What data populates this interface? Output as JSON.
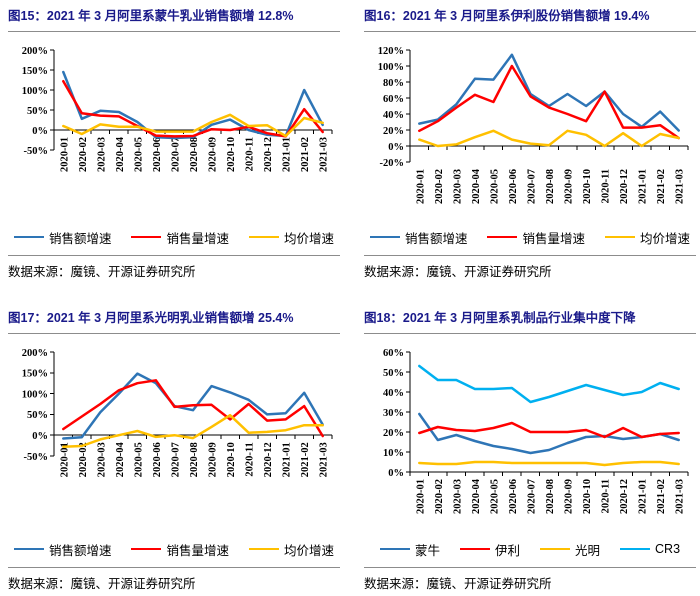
{
  "colors": {
    "title_navy": "#1A1A8A",
    "rule_gray": "#8C8C8C",
    "series_blue": "#2E75B6",
    "series_red": "#FF0000",
    "series_yellow": "#FFC000",
    "series_cyan": "#00B0F0"
  },
  "months": [
    "2020-01",
    "2020-02",
    "2020-03",
    "2020-04",
    "2020-05",
    "2020-06",
    "2020-07",
    "2020-08",
    "2020-09",
    "2020-10",
    "2020-11",
    "2020-12",
    "2021-01",
    "2021-02",
    "2021-03"
  ],
  "panels": [
    {
      "title": "图15：2021 年 3 月阿里系蒙牛乳业销售额增 12.8%",
      "source": "数据来源：魔镜、开源证券研究所",
      "legend": [
        {
          "label": "销售额增速",
          "color": "#2E75B6"
        },
        {
          "label": "销售量增速",
          "color": "#FF0000"
        },
        {
          "label": "均价增速",
          "color": "#FFC000"
        }
      ],
      "chart_data": {
        "type": "line",
        "title": "2021年3月阿里系蒙牛乳业销售额增12.8%",
        "categories": [
          "2020-01",
          "2020-02",
          "2020-03",
          "2020-04",
          "2020-05",
          "2020-06",
          "2020-07",
          "2020-08",
          "2020-09",
          "2020-10",
          "2020-11",
          "2020-12",
          "2021-01",
          "2021-02",
          "2021-03"
        ],
        "series": [
          {
            "name": "销售额增速",
            "color": "#2E75B6",
            "values": [
              145,
              28,
              48,
              45,
              20,
              -18,
              -20,
              -18,
              13,
              26,
              0,
              -12,
              -15,
              100,
              12.8
            ]
          },
          {
            "name": "销售量增速",
            "color": "#FF0000",
            "values": [
              122,
              42,
              36,
              34,
              10,
              -14,
              -16,
              -15,
              2,
              0,
              8,
              -8,
              -16,
              52,
              -5
            ]
          },
          {
            "name": "均价增速",
            "color": "#FFC000",
            "values": [
              10,
              -10,
              14,
              8,
              8,
              -4,
              -4,
              -4,
              20,
              38,
              10,
              12,
              -15,
              30,
              18
            ]
          }
        ],
        "ylim": [
          -50,
          200
        ],
        "ystep": 50,
        "y_unit": "%",
        "grid": false,
        "legend_position": "bottom"
      }
    },
    {
      "title": "图16：2021 年 3 月阿里系伊利股份销售额增 19.4%",
      "source": "数据来源：魔镜、开源证券研究所",
      "legend": [
        {
          "label": "销售额增速",
          "color": "#2E75B6"
        },
        {
          "label": "销售量增速",
          "color": "#FF0000"
        },
        {
          "label": "均价增速",
          "color": "#FFC000"
        }
      ],
      "chart_data": {
        "type": "line",
        "title": "2021年3月阿里系伊利股份销售额增19.4%",
        "categories": [
          "2020-01",
          "2020-02",
          "2020-03",
          "2020-04",
          "2020-05",
          "2020-06",
          "2020-07",
          "2020-08",
          "2020-09",
          "2020-10",
          "2020-11",
          "2020-12",
          "2021-01",
          "2021-02",
          "2021-03"
        ],
        "series": [
          {
            "name": "销售额增速",
            "color": "#2E75B6",
            "values": [
              28,
              33,
              52,
              84,
              83,
              114,
              65,
              50,
              65,
              50,
              68,
              40,
              24,
              43,
              19.4
            ]
          },
          {
            "name": "销售量增速",
            "color": "#FF0000",
            "values": [
              19,
              31,
              48,
              64,
              55,
              100,
              62,
              48,
              40,
              31,
              68,
              23,
              23,
              26,
              10
            ]
          },
          {
            "name": "均价增速",
            "color": "#FFC000",
            "values": [
              8,
              0,
              2,
              11,
              19,
              8,
              3,
              1,
              19,
              14,
              0,
              16,
              0,
              15,
              10
            ]
          }
        ],
        "ylim": [
          -20,
          120
        ],
        "ystep": 20,
        "y_unit": "%",
        "grid": false,
        "legend_position": "bottom"
      }
    },
    {
      "title": "图17：2021 年 3 月阿里系光明乳业销售额增 25.4%",
      "source": "数据来源：魔镜、开源证券研究所",
      "legend": [
        {
          "label": "销售额增速",
          "color": "#2E75B6"
        },
        {
          "label": "销售量增速",
          "color": "#FF0000"
        },
        {
          "label": "均价增速",
          "color": "#FFC000"
        }
      ],
      "chart_data": {
        "type": "line",
        "title": "2021年3月阿里系光明乳业销售额增25.4%",
        "categories": [
          "2020-01",
          "2020-02",
          "2020-03",
          "2020-04",
          "2020-05",
          "2020-06",
          "2020-07",
          "2020-08",
          "2020-09",
          "2020-10",
          "2020-11",
          "2020-12",
          "2021-01",
          "2021-02",
          "2021-03"
        ],
        "series": [
          {
            "name": "销售额增速",
            "color": "#2E75B6",
            "values": [
              -8,
              -5,
              55,
              100,
              148,
              125,
              70,
              60,
              118,
              103,
              85,
              50,
              53,
              102,
              25.4
            ]
          },
          {
            "name": "销售量增速",
            "color": "#FF0000",
            "values": [
              15,
              45,
              75,
              108,
              125,
              132,
              68,
              72,
              73,
              38,
              75,
              35,
              38,
              70,
              -2
            ]
          },
          {
            "name": "均价增速",
            "color": "#FFC000",
            "values": [
              -28,
              -26,
              -10,
              0,
              10,
              -4,
              0,
              -7,
              20,
              48,
              6,
              8,
              12,
              24,
              24
            ]
          }
        ],
        "ylim": [
          -50,
          200
        ],
        "ystep": 50,
        "y_unit": "%",
        "grid": false,
        "legend_position": "bottom"
      }
    },
    {
      "title": "图18：2021 年 3 月阿里系乳制品行业集中度下降",
      "source": "数据来源：魔镜、开源证券研究所",
      "legend": [
        {
          "label": "蒙牛",
          "color": "#2E75B6"
        },
        {
          "label": "伊利",
          "color": "#FF0000"
        },
        {
          "label": "光明",
          "color": "#FFC000"
        },
        {
          "label": "CR3",
          "color": "#00B0F0"
        }
      ],
      "chart_data": {
        "type": "line",
        "title": "2021年3月阿里系乳制品行业集中度下降",
        "categories": [
          "2020-01",
          "2020-02",
          "2020-03",
          "2020-04",
          "2020-05",
          "2020-06",
          "2020-07",
          "2020-08",
          "2020-09",
          "2020-10",
          "2020-11",
          "2020-12",
          "2021-01",
          "2021-02",
          "2021-03"
        ],
        "series": [
          {
            "name": "蒙牛",
            "color": "#2E75B6",
            "values": [
              29,
              16,
              18.5,
              15.5,
              13,
              11.5,
              9.5,
              11,
              14.5,
              17.5,
              18,
              16.5,
              17.5,
              19,
              16
            ]
          },
          {
            "name": "伊利",
            "color": "#FF0000",
            "values": [
              19.5,
              22.5,
              21,
              20.5,
              22,
              24.5,
              20,
              20,
              20,
              21,
              17.5,
              22,
              17.5,
              19,
              19.5
            ]
          },
          {
            "name": "光明",
            "color": "#FFC000",
            "values": [
              4.5,
              4,
              4,
              5,
              5,
              4.5,
              4.5,
              4.5,
              4.5,
              4.5,
              3.5,
              4.5,
              5,
              5,
              4
            ]
          },
          {
            "name": "CR3",
            "color": "#00B0F0",
            "values": [
              53,
              46,
              46,
              41.5,
              41.5,
              42,
              35,
              37.5,
              40.5,
              43.5,
              41,
              38.5,
              40,
              44.5,
              41.5
            ]
          }
        ],
        "ylim": [
          0,
          60
        ],
        "ystep": 10,
        "y_unit": "%",
        "grid": false,
        "legend_position": "bottom"
      }
    }
  ]
}
